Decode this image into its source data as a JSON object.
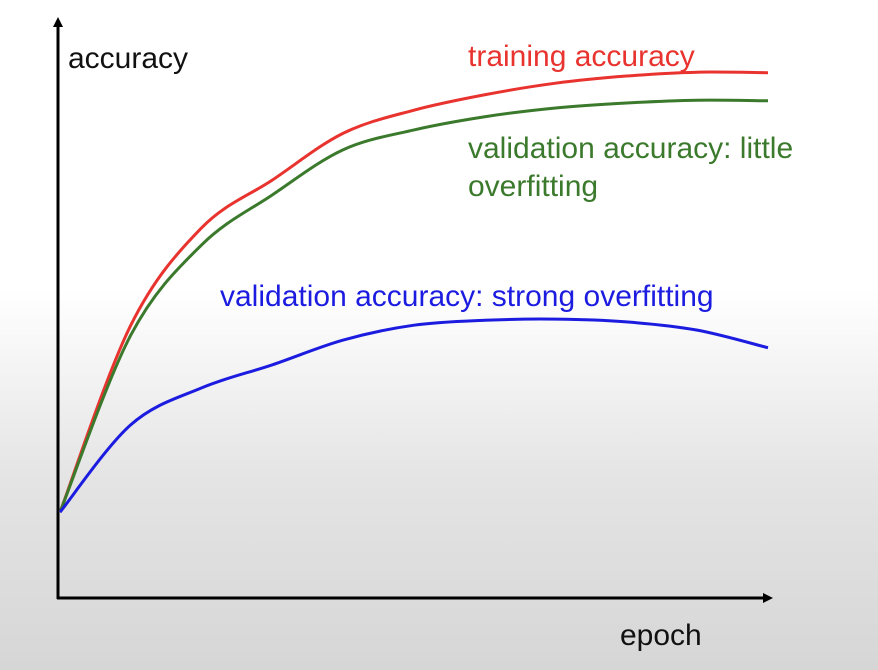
{
  "chart_data": {
    "type": "line",
    "x_label": "epoch",
    "y_label": "accuracy",
    "x": [
      0,
      10,
      20,
      30,
      40,
      50,
      60,
      70,
      80,
      90,
      100
    ],
    "xlim": [
      0,
      100
    ],
    "ylim": [
      0,
      100
    ],
    "series": [
      {
        "name": "training accuracy",
        "color": "#e8332f",
        "values": [
          15.6,
          49.6,
          67.3,
          76,
          84.5,
          88.7,
          91.5,
          93.6,
          94.9,
          95.6,
          95.5
        ]
      },
      {
        "name": "validation accuracy: little overfitting",
        "color": "#3b7a2c",
        "values": [
          15.6,
          47.8,
          64.2,
          73.3,
          81.5,
          85.1,
          87.5,
          89.1,
          90,
          90.5,
          90.4
        ]
      },
      {
        "name": "validation accuracy: strong overfitting",
        "color": "#1c1ce0",
        "values": [
          15.6,
          31.5,
          38.2,
          42.4,
          46.9,
          49.6,
          50.5,
          50.7,
          50.2,
          48.7,
          45.5
        ]
      }
    ]
  }
}
